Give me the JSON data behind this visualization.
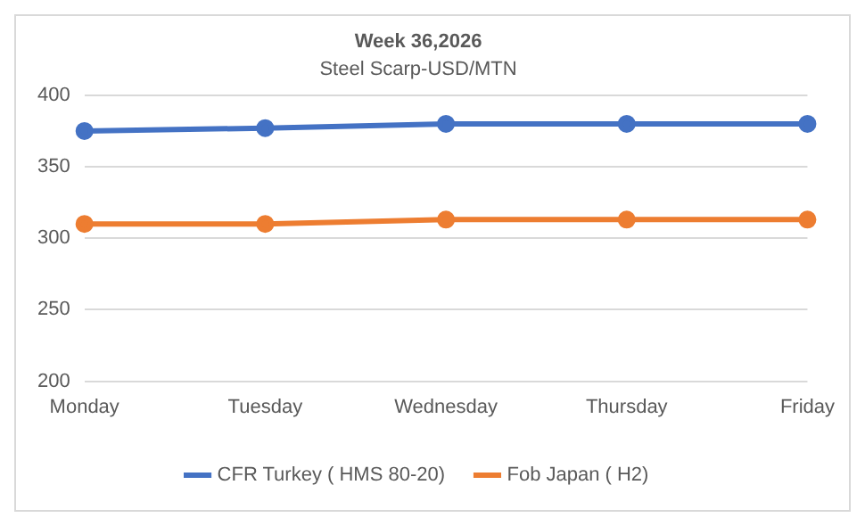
{
  "chart_data": {
    "type": "line",
    "title": "Week 36,2026",
    "subtitle": "Steel Scarp-USD/MTN",
    "categories": [
      "Monday",
      "Tuesday",
      "Wednesday",
      "Thursday",
      "Friday"
    ],
    "series": [
      {
        "name": "CFR Turkey ( HMS 80-20)",
        "color": "#4472c4",
        "values": [
          375,
          377,
          380,
          380,
          380
        ]
      },
      {
        "name": "Fob Japan ( H2)",
        "color": "#ed7d31",
        "values": [
          310,
          310,
          313,
          313,
          313
        ]
      }
    ],
    "ylim": [
      200,
      400
    ],
    "yticks": [
      200,
      250,
      300,
      350,
      400
    ],
    "grid": "y",
    "legend": "bottom",
    "marker": "circle"
  }
}
